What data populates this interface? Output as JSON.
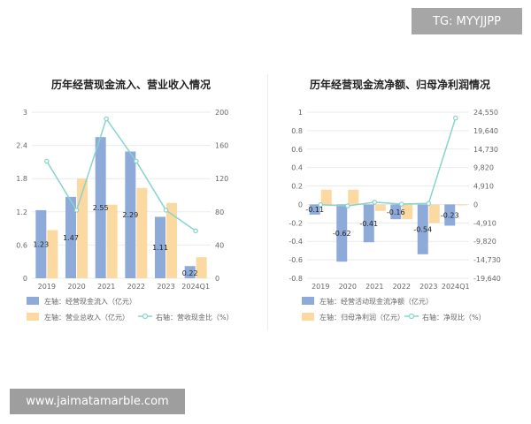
{
  "watermarks": {
    "tg": "TG: MYYJJPP",
    "site": "www.jaimatamarble.com"
  },
  "colors": {
    "blue_bar": "#8eaad9",
    "orange_bar": "#fcd9a0",
    "line": "#88d3cd",
    "grid": "#ebebeb"
  },
  "chart_data": [
    {
      "type": "bar",
      "title": "历年经营现金流入、营业收入情况",
      "categories": [
        "2019",
        "2020",
        "2021",
        "2022",
        "2023",
        "2024Q1"
      ],
      "left_axis": {
        "ylim": [
          0,
          3
        ],
        "ticks": [
          "0",
          "0.6",
          "1.2",
          "1.8",
          "2.4",
          "3"
        ]
      },
      "right_axis": {
        "ylim": [
          0,
          200
        ],
        "ticks": [
          "0",
          "40",
          "80",
          "120",
          "160",
          "200"
        ]
      },
      "series": [
        {
          "name": "左轴：经营现金流入（亿元）",
          "axis": "left",
          "kind": "bar",
          "color": "#8eaad9",
          "values": [
            1.23,
            1.47,
            2.55,
            2.29,
            1.11,
            0.22
          ],
          "labels": [
            "1.23",
            "1.47",
            "2.55",
            "2.29",
            "1.11",
            "0.22"
          ]
        },
        {
          "name": "左轴：营业总收入（亿元）",
          "axis": "left",
          "kind": "bar",
          "color": "#fcd9a0",
          "values": [
            0.87,
            1.8,
            1.33,
            1.63,
            1.36,
            0.38
          ]
        },
        {
          "name": "右轴：营收现金比（%）",
          "axis": "right",
          "kind": "line",
          "color": "#88d3cd",
          "values": [
            141,
            82,
            192,
            141,
            82,
            57
          ]
        }
      ]
    },
    {
      "type": "bar",
      "title": "历年经营现金流净额、归母净利润情况",
      "categories": [
        "2019",
        "2020",
        "2021",
        "2022",
        "2023",
        "2024Q1"
      ],
      "left_axis": {
        "ylim": [
          -0.8,
          1
        ],
        "ticks": [
          "-0.8",
          "-0.6",
          "-0.4",
          "-0.2",
          "0",
          "0.2",
          "0.4",
          "0.6",
          "0.8",
          "1"
        ]
      },
      "right_axis": {
        "ylim": [
          -19640,
          24550
        ],
        "ticks": [
          "-19,640",
          "-14,730",
          "-9,820",
          "-4,910",
          "0",
          "4,910",
          "9,820",
          "14,730",
          "19,640",
          "24,550"
        ]
      },
      "series": [
        {
          "name": "左轴：经营活动现金流净额（亿元）",
          "axis": "left",
          "kind": "bar",
          "color": "#8eaad9",
          "values": [
            -0.11,
            -0.62,
            -0.41,
            -0.16,
            -0.54,
            -0.23
          ],
          "labels": [
            "-0.11",
            "-0.62",
            "-0.41",
            "-0.16",
            "-0.54",
            "-0.23"
          ]
        },
        {
          "name": "左轴：归母净利润（亿元）",
          "axis": "left",
          "kind": "bar",
          "color": "#fcd9a0",
          "values": [
            0.16,
            0.16,
            -0.07,
            -0.16,
            -0.2,
            -0.01
          ]
        },
        {
          "name": "右轴：净现比（%）",
          "axis": "right",
          "kind": "line",
          "color": "#88d3cd",
          "values": [
            -70,
            -390,
            590,
            100,
            270,
            23000
          ]
        }
      ]
    }
  ]
}
